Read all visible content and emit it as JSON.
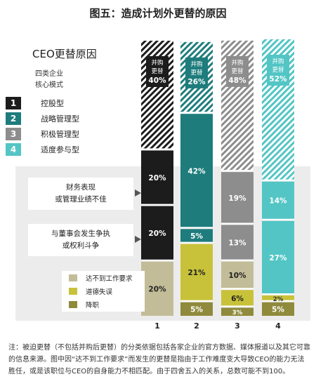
{
  "title": "图五：造成计划外更替的原因",
  "legend": {
    "heading": "CEO更替原因",
    "sub_line1": "四类企业",
    "sub_line2": "核心模式",
    "items": [
      {
        "num": "1",
        "label": "控股型",
        "color": "#1c1c1c"
      },
      {
        "num": "2",
        "label": "战略管理型",
        "color": "#1e7c7c"
      },
      {
        "num": "3",
        "label": "积极管理型",
        "color": "#8d8d8d"
      },
      {
        "num": "4",
        "label": "适度参与型",
        "color": "#53c5c5"
      }
    ]
  },
  "reason_labels": {
    "finance_line1": "财务表现",
    "finance_line2": "或管理业绩不佳",
    "conflict_line1": "与董事会发生争执",
    "conflict_line2": "或权利斗争"
  },
  "chart_data": {
    "type": "bar",
    "stacked": true,
    "categories": [
      "1",
      "2",
      "3",
      "4"
    ],
    "ylim": [
      0,
      100
    ],
    "series": [
      {
        "key": "demote",
        "name": "降职",
        "values": [
          0,
          5,
          3,
          5
        ],
        "labels": [
          "",
          "5%",
          "3%",
          "5%"
        ]
      },
      {
        "key": "ethics",
        "name": "道德失误",
        "values": [
          0,
          21,
          6,
          2
        ],
        "labels": [
          "",
          "21%",
          "6%",
          "2%"
        ]
      },
      {
        "key": "underperf",
        "name": "达不到工作要求",
        "values": [
          20,
          0,
          10,
          0
        ],
        "labels": [
          "20%",
          "",
          "10%",
          ""
        ]
      },
      {
        "key": "conflict",
        "name": "与董事会发生争执或权利斗争",
        "values": [
          20,
          5,
          13,
          27
        ],
        "labels": [
          "20%",
          "5%",
          "13%",
          "27%"
        ]
      },
      {
        "key": "finance",
        "name": "财务表现或管理业绩不佳",
        "values": [
          20,
          42,
          19,
          14
        ],
        "labels": [
          "20%",
          "42%",
          "19%",
          "14%"
        ]
      },
      {
        "key": "merger",
        "name": "并购更替",
        "values": [
          40,
          26,
          48,
          52
        ],
        "labels": [
          "40%",
          "26%",
          "48%",
          "52%"
        ],
        "tag_line1": "并购",
        "tag_line2": "更替"
      }
    ],
    "sub_legend": [
      {
        "label": "达不到工作要求",
        "color": "#c2bd98"
      },
      {
        "label": "道德失误",
        "color": "#c8c23a"
      },
      {
        "label": "降职",
        "color": "#8f8a3c"
      }
    ],
    "colors": {
      "c1_main": "#1c1c1c",
      "c2_main": "#1e7c7c",
      "c3_main": "#8d8d8d",
      "c4_main": "#53c5c5",
      "underperf": "#c2bd98",
      "ethics": "#c8c23a",
      "demote": "#8f8a3c"
    }
  },
  "note": "注：被迫更替（不包括并购后更替）的分类依据包括各家企业的官方数据、媒体报道以及其它可靠的信息来源。图中因“达不到工作要求”而发生的更替是指由于工作难度变大导致CEO的能力无法胜任，或是该职位与CEO的自身能力不相匹配。由于四舍五入的关系，总数可能不到100。"
}
